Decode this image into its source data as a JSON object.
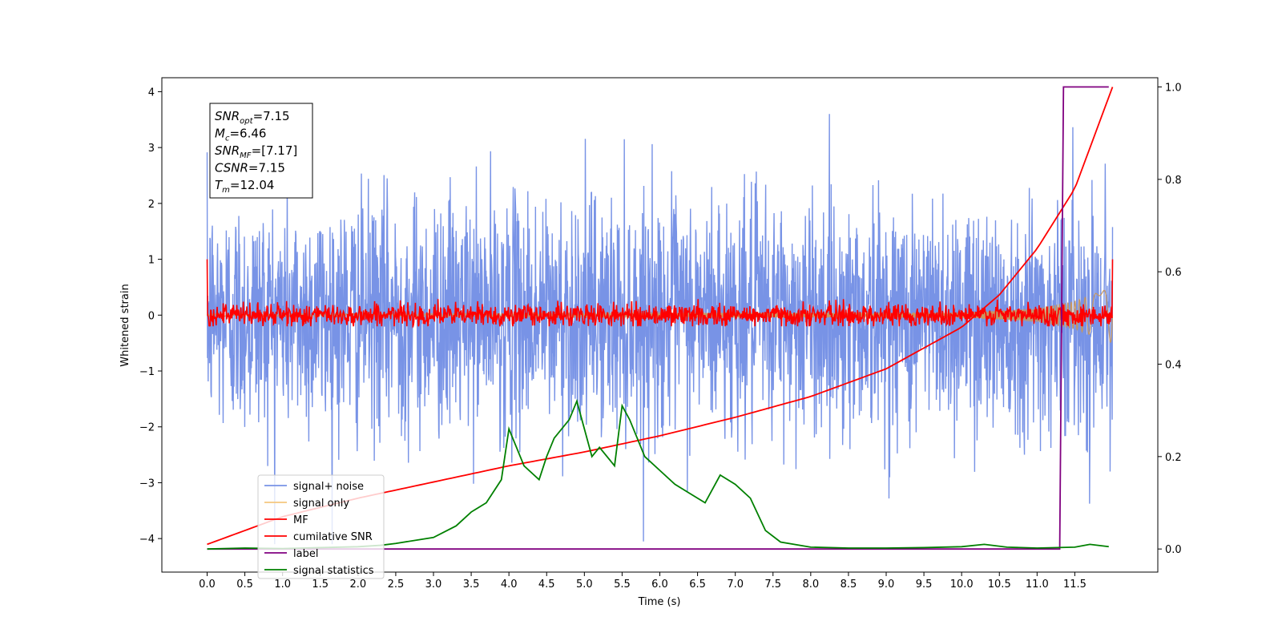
{
  "chart_data": {
    "type": "line",
    "xlabel": "Time (s)",
    "ylabel": "Whitened strain",
    "xlim": [
      -0.6,
      12.6
    ],
    "ylim": [
      -4.6,
      4.25
    ],
    "y2lim": [
      -0.05,
      1.02
    ],
    "x_ticks": [
      0.0,
      0.5,
      1.0,
      1.5,
      2.0,
      2.5,
      3.0,
      3.5,
      4.0,
      4.5,
      5.0,
      5.5,
      6.0,
      6.5,
      7.0,
      7.5,
      8.0,
      8.5,
      9.0,
      9.5,
      10.0,
      10.5,
      11.0,
      11.5
    ],
    "x_tick_labels": [
      "0.0",
      "0.5",
      "1.0",
      "1.5",
      "2.0",
      "2.5",
      "3.0",
      "3.5",
      "4.0",
      "4.5",
      "5.0",
      "5.5",
      "6.0",
      "6.5",
      "7.0",
      "7.5",
      "8.0",
      "8.5",
      "9.0",
      "9.5",
      "10.0",
      "10.5",
      "11.0",
      "11.5"
    ],
    "y_ticks": [
      4,
      3,
      2,
      1,
      0,
      -1,
      -2,
      -3,
      -4
    ],
    "y_tick_labels": [
      "4",
      "3",
      "2",
      "1",
      "0",
      "−1",
      "−2",
      "−3",
      "−4"
    ],
    "y2_ticks": [
      1.0,
      0.8,
      0.6,
      0.4,
      0.2,
      0.0
    ],
    "y2_tick_labels": [
      "1.0",
      "0.8",
      "0.6",
      "0.4",
      "0.2",
      "0.0"
    ],
    "legend_position": "lower-left",
    "series": [
      {
        "name": "signal+ noise",
        "color": "#7893e6",
        "axis": "left",
        "kind": "noise",
        "x_range": [
          0.0,
          12.0
        ],
        "amplitude_min": -4.1,
        "amplitude_max": 3.85
      },
      {
        "name": "signal only",
        "color": "#f5c77e",
        "axis": "left",
        "kind": "chirp",
        "x_range": [
          0.0,
          12.0
        ],
        "envelope_x": [
          0.0,
          10.0,
          11.0,
          11.5,
          12.0
        ],
        "envelope": [
          0.02,
          0.05,
          0.12,
          0.25,
          0.5
        ]
      },
      {
        "name": "MF",
        "color": "#ff0000",
        "axis": "left",
        "kind": "noise",
        "x_range": [
          0.0,
          12.0
        ],
        "amplitude_min": -0.2,
        "amplitude_max": 1.0
      },
      {
        "name": "cumilative SNR",
        "color": "#ff0000",
        "axis": "right",
        "x": [
          0.0,
          1.0,
          2.0,
          3.0,
          4.0,
          5.0,
          6.0,
          7.0,
          8.0,
          9.0,
          10.0,
          10.5,
          11.0,
          11.5,
          12.0
        ],
        "y": [
          0.01,
          0.07,
          0.11,
          0.145,
          0.18,
          0.21,
          0.245,
          0.285,
          0.33,
          0.39,
          0.48,
          0.55,
          0.65,
          0.78,
          1.0
        ]
      },
      {
        "name": "label",
        "color": "#800080",
        "axis": "right",
        "x": [
          0.0,
          11.3,
          11.35,
          11.95
        ],
        "y": [
          0.0,
          0.0,
          1.0,
          1.0
        ]
      },
      {
        "name": "signal statistics",
        "color": "#008000",
        "axis": "right",
        "x": [
          0.0,
          0.5,
          1.0,
          1.5,
          2.0,
          2.3,
          2.5,
          3.0,
          3.3,
          3.5,
          3.7,
          3.9,
          4.0,
          4.2,
          4.4,
          4.5,
          4.6,
          4.8,
          4.9,
          5.0,
          5.1,
          5.2,
          5.4,
          5.5,
          5.6,
          5.8,
          6.0,
          6.2,
          6.4,
          6.6,
          6.8,
          7.0,
          7.2,
          7.4,
          7.6,
          8.0,
          8.5,
          9.0,
          9.5,
          10.0,
          10.3,
          10.6,
          11.0,
          11.5,
          11.7,
          11.95
        ],
        "y": [
          0.0,
          0.002,
          0.001,
          0.003,
          0.005,
          0.008,
          0.012,
          0.025,
          0.05,
          0.08,
          0.1,
          0.15,
          0.26,
          0.18,
          0.15,
          0.2,
          0.24,
          0.28,
          0.32,
          0.26,
          0.2,
          0.22,
          0.18,
          0.31,
          0.28,
          0.2,
          0.17,
          0.14,
          0.12,
          0.1,
          0.16,
          0.14,
          0.11,
          0.04,
          0.015,
          0.004,
          0.002,
          0.002,
          0.003,
          0.005,
          0.01,
          0.004,
          0.002,
          0.004,
          0.01,
          0.005
        ]
      }
    ],
    "annotation": {
      "lines": [
        {
          "base": "SNR",
          "sub": "opt",
          "rest": "=7.15"
        },
        {
          "base": "M",
          "sub": "c",
          "rest": "=6.46"
        },
        {
          "base": "SNR",
          "sub": "MF",
          "rest": "=[7.17]"
        },
        {
          "base": "CSNR",
          "sub": "",
          "rest": "=7.15"
        },
        {
          "base": "T",
          "sub": "m",
          "rest": "=12.04"
        }
      ]
    }
  }
}
